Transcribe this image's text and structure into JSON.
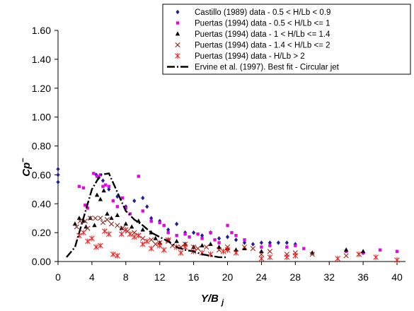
{
  "chart_data": {
    "type": "scatter",
    "xlabel": "Y/B",
    "xlabel_subscript": "j",
    "ylabel": "Cp",
    "ylabel_superscript": "−",
    "xlim": [
      0,
      41
    ],
    "ylim": [
      0,
      1.6
    ],
    "xticks": [
      0,
      4,
      8,
      12,
      16,
      20,
      24,
      28,
      32,
      36,
      40
    ],
    "yticks": [
      0,
      0.2,
      0.4,
      0.6,
      0.8,
      1.0,
      1.2,
      1.4,
      1.6
    ],
    "xtick_labels": [
      "0",
      "4",
      "8",
      "12",
      "16",
      "20",
      "24",
      "28",
      "32",
      "36",
      "40"
    ],
    "ytick_labels": [
      "0.00",
      "0.20",
      "0.40",
      "0.60",
      "0.80",
      "1.00",
      "1.20",
      "1.40",
      "1.60"
    ],
    "grid": false,
    "legend_position": "top-right",
    "series": [
      {
        "name": "Castillo (1989) data - 0.5 < H/Lb < 0.9",
        "marker": "diamond",
        "color": "#1f1f9a",
        "points": [
          [
            0,
            0.64
          ],
          [
            0,
            0.6
          ],
          [
            0,
            0.55
          ],
          [
            4.5,
            0.6
          ],
          [
            4.8,
            0.58
          ],
          [
            5.3,
            0.56
          ],
          [
            6,
            0.5
          ],
          [
            7,
            0.45
          ],
          [
            8,
            0.38
          ],
          [
            9,
            0.42
          ],
          [
            10,
            0.44
          ],
          [
            10.5,
            0.38
          ],
          [
            11,
            0.3
          ],
          [
            12,
            0.28
          ],
          [
            13,
            0.22
          ],
          [
            14,
            0.26
          ],
          [
            15,
            0.2
          ],
          [
            16,
            0.2
          ],
          [
            17,
            0.18
          ],
          [
            18,
            0.2
          ],
          [
            19,
            0.16
          ],
          [
            20,
            0.17
          ],
          [
            21,
            0.15
          ],
          [
            22,
            0.13
          ],
          [
            23,
            0.12
          ],
          [
            24,
            0.13
          ],
          [
            25,
            0.13
          ],
          [
            26,
            0.13
          ],
          [
            27,
            0.13
          ],
          [
            28,
            0.12
          ],
          [
            36,
            0.06
          ]
        ]
      },
      {
        "name": "Puertas (1994) data - 0.5 < H/Lb <= 1",
        "marker": "square",
        "color": "#ee00ee",
        "points": [
          [
            2.5,
            0.52
          ],
          [
            3,
            0.51
          ],
          [
            3.2,
            0.39
          ],
          [
            3.5,
            0.37
          ],
          [
            4.2,
            0.61
          ],
          [
            4.6,
            0.59
          ],
          [
            5,
            0.6
          ],
          [
            5.3,
            0.52
          ],
          [
            5.6,
            0.53
          ],
          [
            6,
            0.52
          ],
          [
            6.5,
            0.42
          ],
          [
            7,
            0.38
          ],
          [
            7.6,
            0.44
          ],
          [
            8,
            0.37
          ],
          [
            8.5,
            0.33
          ],
          [
            9.5,
            0.59
          ],
          [
            10,
            0.35
          ],
          [
            11,
            0.28
          ],
          [
            12,
            0.27
          ],
          [
            12.5,
            0.25
          ],
          [
            13,
            0.2
          ],
          [
            14,
            0.18
          ],
          [
            15,
            0.19
          ],
          [
            15.5,
            0.17
          ],
          [
            16.5,
            0.19
          ],
          [
            17,
            0.16
          ],
          [
            18,
            0.2
          ],
          [
            18.5,
            0.15
          ],
          [
            19,
            0.13
          ],
          [
            20,
            0.25
          ],
          [
            20.5,
            0.2
          ],
          [
            21,
            0.18
          ],
          [
            22,
            0.15
          ],
          [
            24,
            0.1
          ],
          [
            25,
            0.11
          ],
          [
            27,
            0.1
          ],
          [
            28,
            0.11
          ],
          [
            29,
            0.09
          ],
          [
            34,
            0.07
          ],
          [
            36,
            0.06
          ],
          [
            38,
            0.08
          ],
          [
            40,
            0.07
          ]
        ]
      },
      {
        "name": "Puertas (1994) data - 1 < H/Lb <= 1.4",
        "marker": "triangle",
        "color": "#000000",
        "points": [
          [
            2,
            0.26
          ],
          [
            2.5,
            0.3
          ],
          [
            3,
            0.28
          ],
          [
            3.3,
            0.24
          ],
          [
            3.8,
            0.3
          ],
          [
            4.3,
            0.25
          ],
          [
            4.6,
            0.46
          ],
          [
            5,
            0.43
          ],
          [
            5.4,
            0.49
          ],
          [
            5.8,
            0.33
          ],
          [
            6.3,
            0.3
          ],
          [
            7,
            0.32
          ],
          [
            7.5,
            0.23
          ],
          [
            8,
            0.26
          ],
          [
            8.7,
            0.24
          ],
          [
            9.5,
            0.28
          ],
          [
            10,
            0.22
          ],
          [
            11,
            0.2
          ],
          [
            11.5,
            0.16
          ],
          [
            12,
            0.13
          ],
          [
            13,
            0.15
          ],
          [
            14,
            0.14
          ],
          [
            15,
            0.12
          ],
          [
            16,
            0.1
          ],
          [
            17,
            0.11
          ],
          [
            18,
            0.12
          ],
          [
            19,
            0.1
          ],
          [
            20,
            0.09
          ],
          [
            21,
            0.08
          ],
          [
            22,
            0.09
          ],
          [
            24,
            0.07
          ],
          [
            30,
            0.06
          ],
          [
            34,
            0.08
          ],
          [
            36,
            0.07
          ]
        ]
      },
      {
        "name": "Puertas (1994) data - 1.4 < H/Lb <= 2",
        "marker": "x",
        "color": "#8b2a22",
        "points": [
          [
            2.2,
            0.24
          ],
          [
            2.6,
            0.28
          ],
          [
            3.2,
            0.28
          ],
          [
            3.5,
            0.23
          ],
          [
            3.8,
            0.3
          ],
          [
            4.4,
            0.3
          ],
          [
            5,
            0.3
          ],
          [
            5.3,
            0.27
          ],
          [
            5.8,
            0.29
          ],
          [
            6.3,
            0.26
          ],
          [
            7,
            0.25
          ],
          [
            7.6,
            0.23
          ],
          [
            8.2,
            0.21
          ],
          [
            9,
            0.2
          ],
          [
            9.5,
            0.18
          ],
          [
            10,
            0.16
          ],
          [
            11,
            0.15
          ],
          [
            11.5,
            0.12
          ],
          [
            12,
            0.13
          ],
          [
            13,
            0.14
          ],
          [
            13.5,
            0.11
          ],
          [
            14.5,
            0.1
          ],
          [
            15,
            0.12
          ],
          [
            16,
            0.1
          ],
          [
            16.5,
            0.09
          ],
          [
            17.5,
            0.1
          ],
          [
            19,
            0.08
          ],
          [
            20,
            0.1
          ],
          [
            22,
            0.1
          ],
          [
            23,
            0.09
          ],
          [
            24,
            0.05
          ],
          [
            25,
            0.07
          ],
          [
            27,
            0.05
          ],
          [
            28,
            0.06
          ],
          [
            30,
            0.05
          ],
          [
            34,
            0.04
          ],
          [
            35.5,
            0.05
          ]
        ]
      },
      {
        "name": "Puertas (1994) data - H/Lb > 2",
        "marker": "asterisk",
        "color": "#ee2222",
        "points": [
          [
            2.5,
            0.18
          ],
          [
            3,
            0.2
          ],
          [
            3.5,
            0.14
          ],
          [
            4,
            0.16
          ],
          [
            4.5,
            0.1
          ],
          [
            5,
            0.11
          ],
          [
            5.5,
            0.21
          ],
          [
            6,
            0.19
          ],
          [
            6.5,
            0.05
          ],
          [
            7,
            0.04
          ],
          [
            7.5,
            0.19
          ],
          [
            8,
            0.22
          ],
          [
            8.5,
            0.19
          ],
          [
            9,
            0.17
          ],
          [
            9.5,
            0.18
          ],
          [
            10,
            0.12
          ],
          [
            10.5,
            0.14
          ],
          [
            11,
            0.09
          ],
          [
            12,
            0.11
          ],
          [
            12.5,
            0.08
          ],
          [
            13,
            0.15
          ],
          [
            14,
            0.1
          ],
          [
            14.5,
            0.06
          ],
          [
            15,
            0.1
          ],
          [
            16,
            0.07
          ],
          [
            17,
            0.06
          ],
          [
            18,
            0.05
          ],
          [
            19.5,
            0.07
          ],
          [
            20,
            0.08
          ],
          [
            21,
            0.06
          ],
          [
            24,
            0.02
          ],
          [
            25,
            0.03
          ],
          [
            27,
            0.03
          ],
          [
            28,
            0.04
          ],
          [
            33,
            0.02
          ],
          [
            35.5,
            0.05
          ],
          [
            37.5,
            0.03
          ],
          [
            40,
            0.01
          ]
        ]
      },
      {
        "name": "Ervine et al. (1997). Best fit - Circular jet",
        "marker": "line",
        "color": "#000000",
        "points": [
          [
            1,
            0.03
          ],
          [
            2,
            0.1
          ],
          [
            3,
            0.3
          ],
          [
            4,
            0.5
          ],
          [
            5,
            0.6
          ],
          [
            6,
            0.61
          ],
          [
            7,
            0.48
          ],
          [
            8,
            0.35
          ],
          [
            9,
            0.29
          ],
          [
            10,
            0.25
          ],
          [
            11,
            0.2
          ],
          [
            12,
            0.17
          ],
          [
            13,
            0.14
          ],
          [
            14,
            0.1
          ],
          [
            15,
            0.08
          ],
          [
            16,
            0.07
          ],
          [
            17,
            0.05
          ],
          [
            18,
            0.04
          ],
          [
            19,
            0.03
          ],
          [
            20,
            0.03
          ]
        ]
      }
    ]
  }
}
